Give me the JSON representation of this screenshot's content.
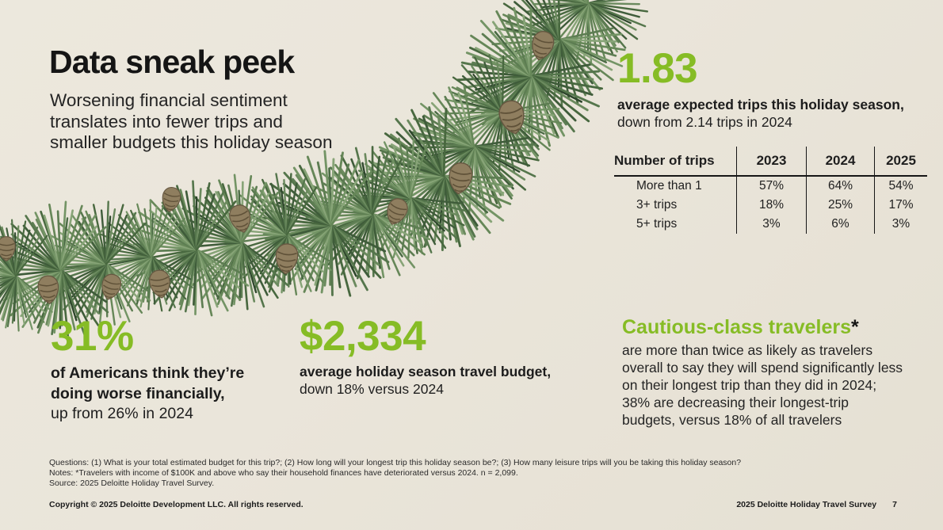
{
  "slide_title": "Data sneak peek",
  "subtitle_lines": [
    "Worsening financial sentiment",
    "translates into fewer trips and",
    "smaller budgets this holiday season"
  ],
  "colors": {
    "accent_green": "#86bc25",
    "background_cream": "#e9e4d8",
    "text_dark": "#1f1f1f",
    "garland_green": "#55764c",
    "pinecone_brown": "#8f7e5f"
  },
  "stat_trips": {
    "value": "1.83",
    "line_bold": "average expected trips this holiday season,",
    "line_regular": "down from 2.14 trips in 2024"
  },
  "chart_data": {
    "type": "table",
    "columns": [
      "Number of trips",
      "2023",
      "2024",
      "2025"
    ],
    "rows": [
      {
        "label": "More than 1",
        "values": [
          "57%",
          "64%",
          "54%"
        ]
      },
      {
        "label": "3+ trips",
        "values": [
          "18%",
          "25%",
          "17%"
        ]
      },
      {
        "label": "5+ trips",
        "values": [
          "3%",
          "6%",
          "3%"
        ]
      }
    ]
  },
  "stat_financial": {
    "value": "31%",
    "bold_line1": "of Americans think they’re",
    "bold_line2": "doing worse financially,",
    "regular_line": "up from 26% in 2024"
  },
  "stat_budget": {
    "value": "$2,334",
    "line_bold": "average holiday season travel budget,",
    "line_regular": "down 18% versus 2024"
  },
  "cautious": {
    "heading": "Cautious-class travelers",
    "asterisk": "*",
    "body_lines": [
      "are more than twice as likely as travelers",
      "overall to say they will spend significantly less",
      "on their longest trip than they did in 2024;",
      "38% are decreasing their longest-trip",
      "budgets, versus 18% of all travelers"
    ]
  },
  "footnotes": {
    "questions": "Questions: (1) What is your total estimated budget for this trip?; (2) How long will your longest trip this holiday season be?; (3) How many leisure trips will you be taking this holiday season?",
    "notes": "Notes: *Travelers with income of $100K and above who say their household finances have deteriorated versus 2024. n = 2,099.",
    "source": "Source: 2025 Deloitte Holiday Travel Survey."
  },
  "footer": {
    "copyright": "Copyright © 2025 Deloitte Development LLC. All rights reserved.",
    "survey_label": "2025 Deloitte Holiday Travel Survey",
    "page_number": "7"
  }
}
